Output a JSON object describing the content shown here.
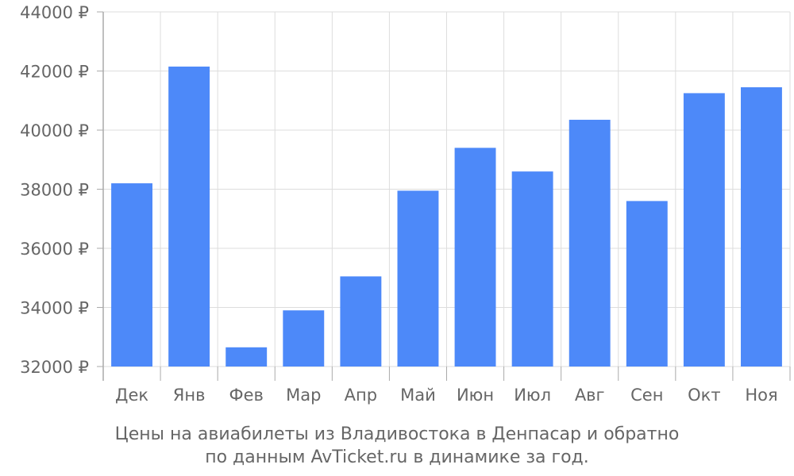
{
  "chart_data": {
    "type": "bar",
    "categories": [
      "Дек",
      "Янв",
      "Фев",
      "Мар",
      "Апр",
      "Май",
      "Июн",
      "Июл",
      "Авг",
      "Сен",
      "Окт",
      "Ноя"
    ],
    "values": [
      38200,
      42150,
      32650,
      33900,
      35050,
      37950,
      39400,
      38600,
      40350,
      37600,
      41250,
      41450
    ],
    "ylim": [
      32000,
      44000
    ],
    "yticks": [
      32000,
      34000,
      36000,
      38000,
      40000,
      42000,
      44000
    ],
    "currency_suffix": " ₽",
    "grid": true,
    "bar_color": "#4d89f9",
    "grid_color": "#dddddd",
    "axis_color": "#aaaaaa",
    "text_color": "#666666"
  },
  "caption": {
    "line1": "Цены на авиабилеты из Владивостока в Денпасар и обратно",
    "line2": "по данным AvTicket.ru в динамике за год."
  }
}
